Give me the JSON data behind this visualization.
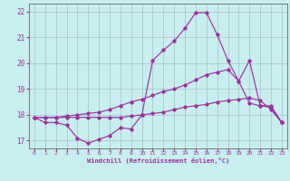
{
  "xlabel": "Windchill (Refroidissement éolien,°C)",
  "background_color": "#c8eef0",
  "grid_color": "#aabbcc",
  "line_color": "#993399",
  "ylim": [
    16.7,
    22.3
  ],
  "xlim": [
    -0.5,
    23.5
  ],
  "ytick_vals": [
    17,
    18,
    19,
    20,
    21,
    22
  ],
  "xtick_vals": [
    0,
    1,
    2,
    3,
    4,
    5,
    6,
    7,
    8,
    9,
    10,
    11,
    12,
    13,
    14,
    15,
    16,
    17,
    18,
    19,
    20,
    21,
    22,
    23
  ],
  "line1_x": [
    0,
    1,
    2,
    3,
    4,
    5,
    6,
    7,
    8,
    9,
    10,
    11,
    12,
    13,
    14,
    15,
    16,
    17,
    18,
    19,
    20,
    21,
    22,
    23
  ],
  "line1_y": [
    17.9,
    17.7,
    17.7,
    17.6,
    17.1,
    16.9,
    17.05,
    17.2,
    17.5,
    17.45,
    18.0,
    20.1,
    20.5,
    20.85,
    21.35,
    21.95,
    21.95,
    21.1,
    20.1,
    19.3,
    20.1,
    18.35,
    18.3,
    17.7
  ],
  "line2_x": [
    0,
    1,
    2,
    3,
    4,
    5,
    6,
    7,
    8,
    9,
    10,
    11,
    12,
    13,
    14,
    15,
    16,
    17,
    18,
    19,
    20,
    21,
    22,
    23
  ],
  "line2_y": [
    17.9,
    17.9,
    17.9,
    17.95,
    18.0,
    18.05,
    18.1,
    18.2,
    18.35,
    18.5,
    18.6,
    18.75,
    18.9,
    19.0,
    19.15,
    19.35,
    19.55,
    19.65,
    19.75,
    19.3,
    18.45,
    18.35,
    18.35,
    17.7
  ],
  "line3_x": [
    0,
    1,
    2,
    3,
    4,
    5,
    6,
    7,
    8,
    9,
    10,
    11,
    12,
    13,
    14,
    15,
    16,
    17,
    18,
    19,
    20,
    21,
    22,
    23
  ],
  "line3_y": [
    17.9,
    17.9,
    17.9,
    17.9,
    17.9,
    17.9,
    17.9,
    17.9,
    17.9,
    17.95,
    18.0,
    18.05,
    18.1,
    18.2,
    18.3,
    18.35,
    18.4,
    18.5,
    18.55,
    18.6,
    18.65,
    18.55,
    18.2,
    17.7
  ]
}
